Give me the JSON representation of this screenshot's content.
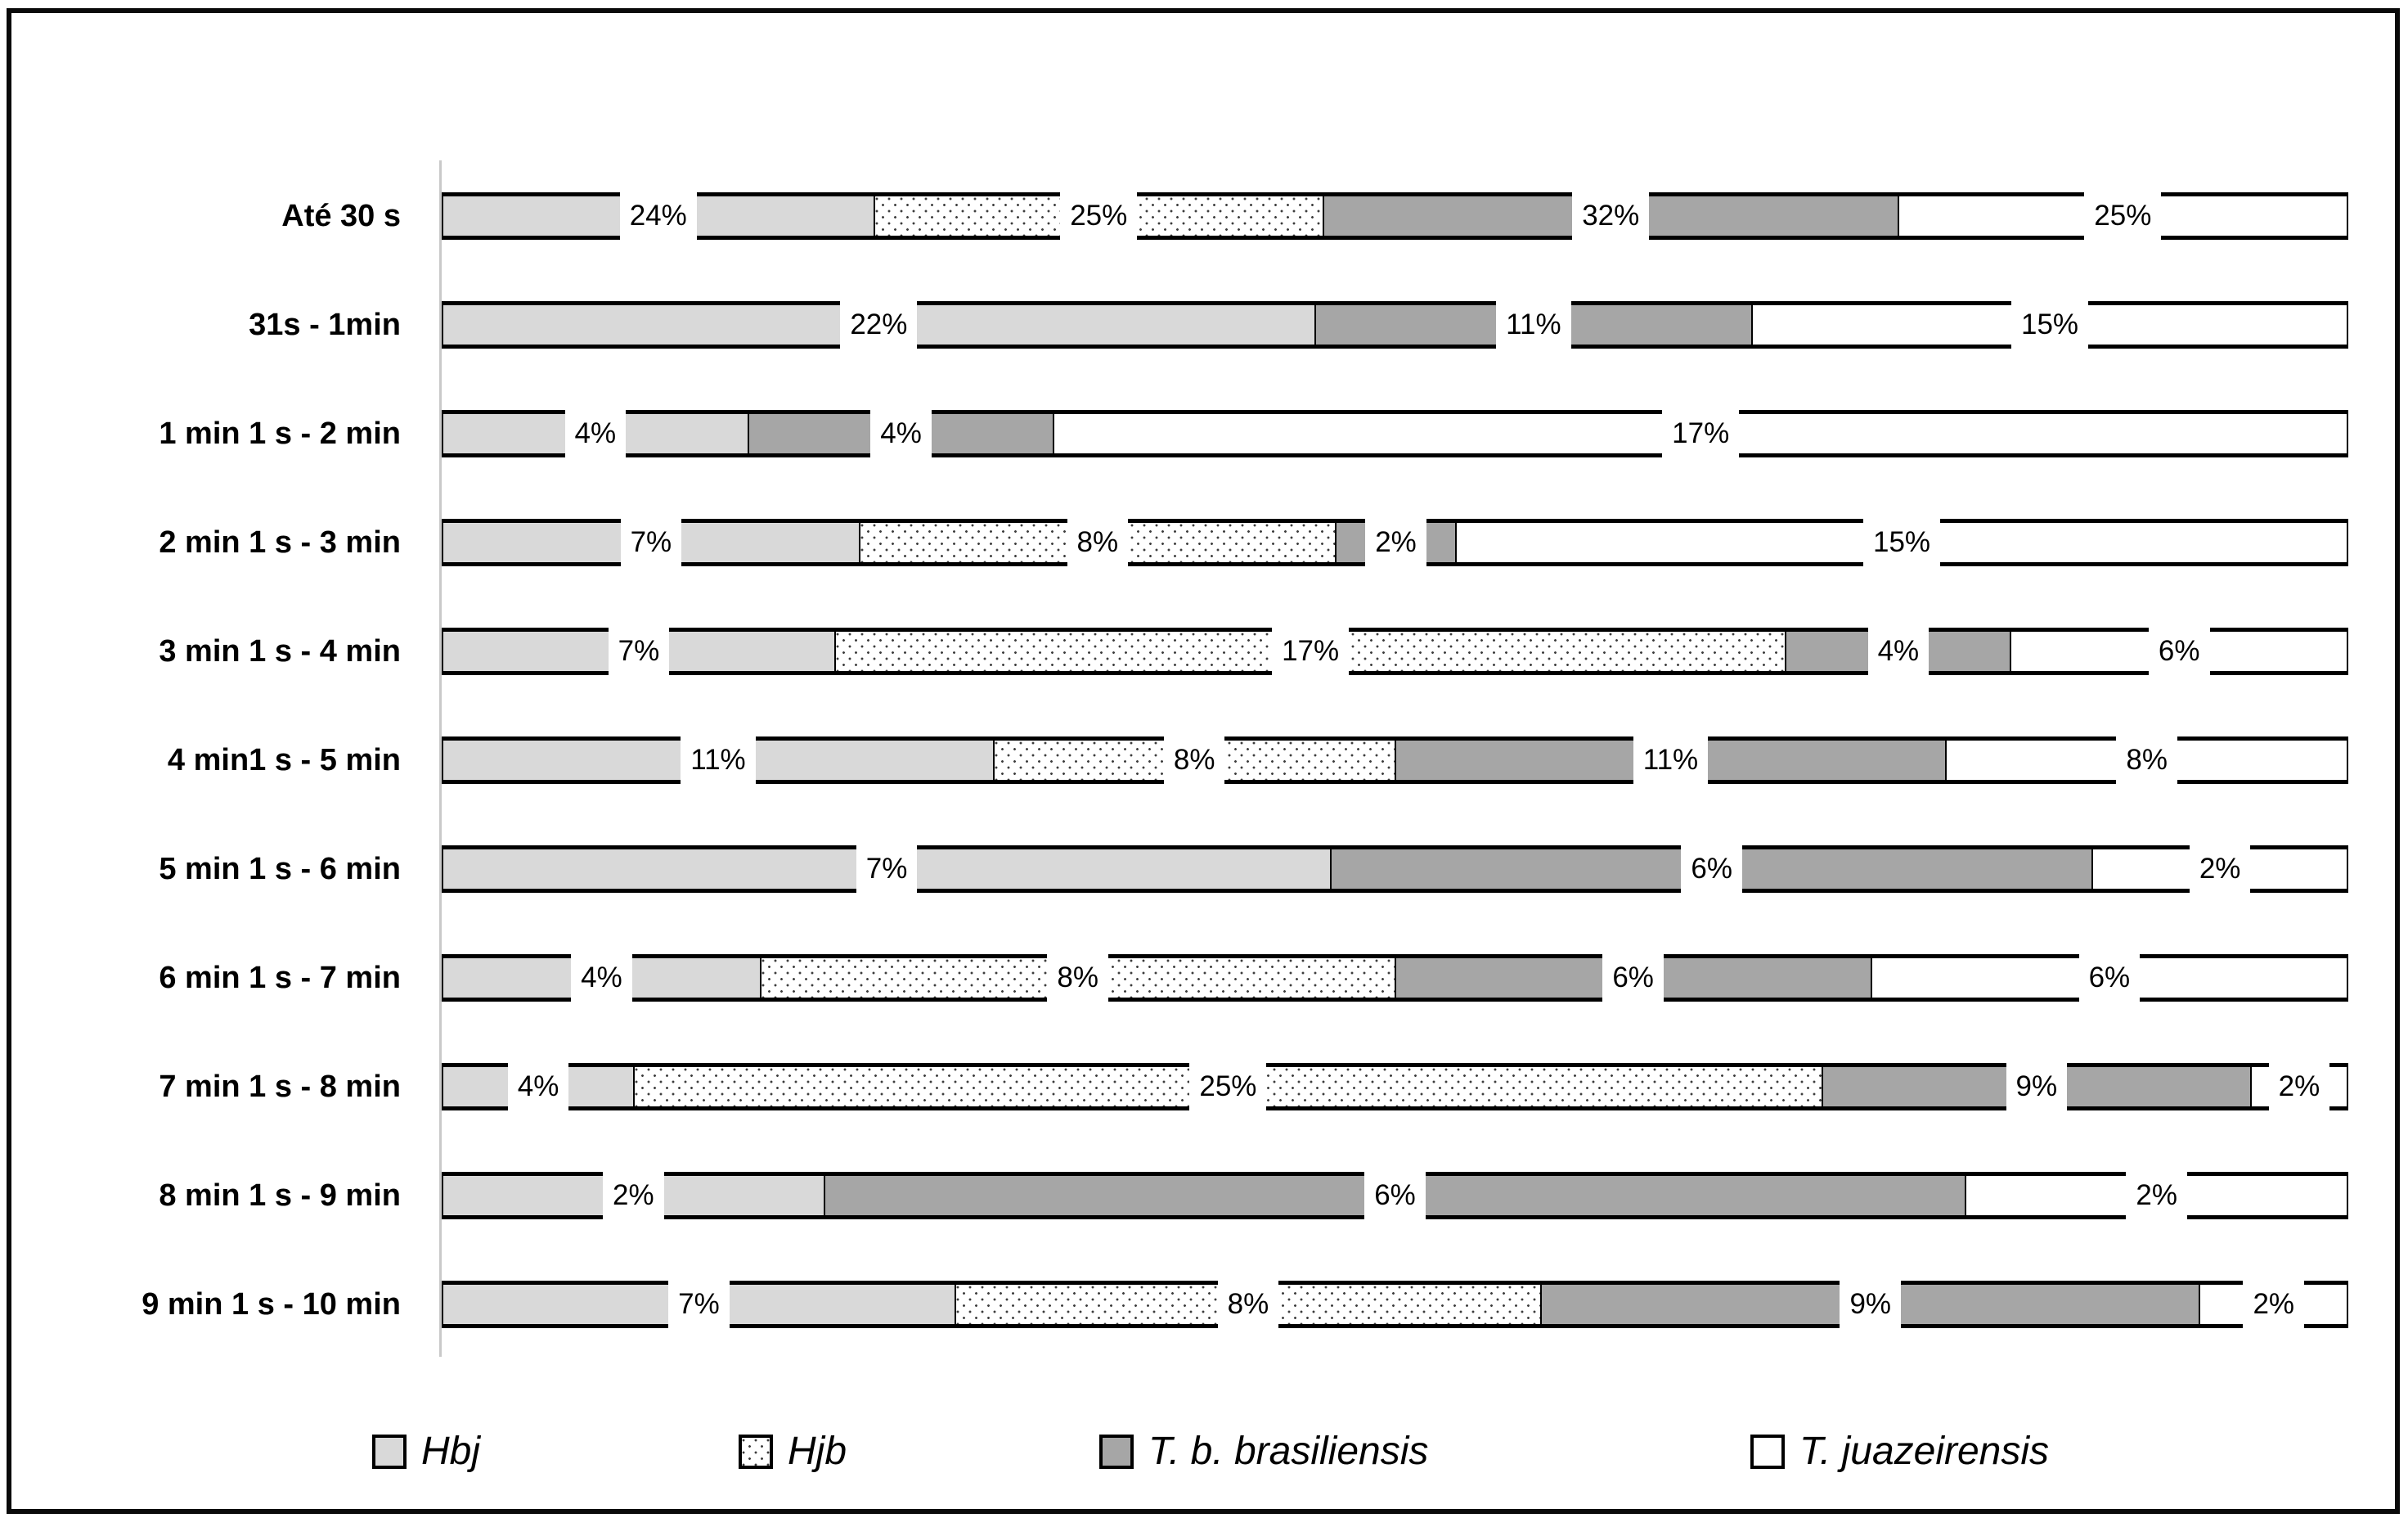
{
  "figure": {
    "kind": "horizontal 100% stacked bar chart",
    "title": "",
    "border_color": "#000000",
    "background": "#ffffff"
  },
  "colors": {
    "hbj_light_gray": "#d9d9d9",
    "tbb_dark_gray": "#a6a6a6",
    "tj_white": "#ffffff",
    "hjb_dot": "#3d3d3d",
    "axis_line": "#c9c9c9",
    "label_text": "#000000"
  },
  "chart_data": {
    "type": "bar",
    "orientation": "horizontal",
    "stacked": true,
    "normalized_rows": true,
    "label_format": "percent",
    "note": "Each row is drawn as a full-width stacked bar; each segment width is proportional to its printed % value divided by the row's total. Data labels sit in white boxes centered on each segment.",
    "categories": [
      "Até 30 s",
      "31s - 1min",
      "1 min 1 s - 2 min",
      "2 min 1 s - 3 min",
      "3 min 1 s - 4 min",
      "4 min1 s - 5 min",
      "5 min 1 s - 6 min",
      "6 min 1 s - 7 min",
      "7 min 1 s - 8 min",
      "8 min 1 s - 9 min",
      "9 min 1 s - 10 min"
    ],
    "series": [
      {
        "name": "Hbj",
        "key": "hbj",
        "pattern": "light-gray",
        "values": [
          24,
          22,
          4,
          7,
          7,
          11,
          7,
          4,
          4,
          2,
          7
        ]
      },
      {
        "name": "Hjb",
        "key": "hjb",
        "pattern": "white-with-dots",
        "values": [
          25,
          null,
          null,
          8,
          17,
          8,
          null,
          8,
          25,
          null,
          8
        ]
      },
      {
        "name": "T. b. brasiliensis",
        "key": "tbb",
        "pattern": "dark-gray",
        "values": [
          32,
          11,
          4,
          2,
          4,
          11,
          6,
          6,
          9,
          6,
          9
        ]
      },
      {
        "name": "T. juazeirensis",
        "key": "tj",
        "pattern": "white",
        "values": [
          25,
          15,
          17,
          15,
          6,
          8,
          2,
          6,
          2,
          2,
          2
        ]
      }
    ]
  },
  "legend": {
    "items": [
      {
        "label": "Hbj",
        "key": "hbj",
        "x": 455
      },
      {
        "label": "Hjb",
        "key": "hjb",
        "x": 903
      },
      {
        "label": "T. b. brasiliensis",
        "key": "tbb",
        "x": 1344
      },
      {
        "label": "T. juazeirensis",
        "key": "tj",
        "x": 2140
      }
    ]
  }
}
